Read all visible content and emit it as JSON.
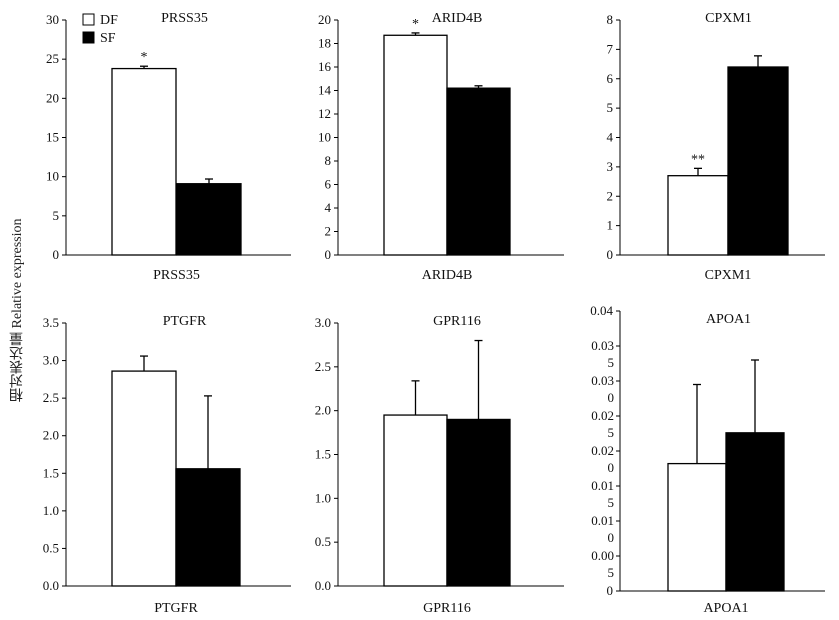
{
  "figure": {
    "y_axis_label": "相对表达量 Relative expression",
    "legend": [
      {
        "label": "DF",
        "color": "#ffffff"
      },
      {
        "label": "SF",
        "color": "#000000"
      }
    ]
  },
  "chart_data": [
    {
      "type": "bar",
      "title": "PRSS35",
      "xlabel": "PRSS35",
      "ylim": [
        0,
        30
      ],
      "ticks": [
        "0",
        "5",
        "10",
        "15",
        "20",
        "25",
        "30"
      ],
      "categories": [
        "DF",
        "SF"
      ],
      "series": [
        {
          "name": "DF",
          "value": 23.8,
          "error": 0.3,
          "color": "#ffffff",
          "annotation": "*"
        },
        {
          "name": "SF",
          "value": 9.1,
          "error": 0.6,
          "color": "#000000",
          "annotation": ""
        }
      ]
    },
    {
      "type": "bar",
      "title": "ARID4B",
      "xlabel": "ARID4B",
      "ylim": [
        0,
        20
      ],
      "ticks": [
        "0",
        "2",
        "4",
        "6",
        "8",
        "10",
        "12",
        "14",
        "16",
        "18",
        "20"
      ],
      "categories": [
        "DF",
        "SF"
      ],
      "series": [
        {
          "name": "DF",
          "value": 18.7,
          "error": 0.2,
          "color": "#ffffff",
          "annotation": "*"
        },
        {
          "name": "SF",
          "value": 14.2,
          "error": 0.2,
          "color": "#000000",
          "annotation": ""
        }
      ]
    },
    {
      "type": "bar",
      "title": "CPXM1",
      "xlabel": "CPXM1",
      "ylim": [
        0,
        8
      ],
      "ticks": [
        "0",
        "1",
        "2",
        "3",
        "4",
        "5",
        "6",
        "7",
        "8"
      ],
      "categories": [
        "DF",
        "SF"
      ],
      "series": [
        {
          "name": "DF",
          "value": 2.7,
          "error": 0.25,
          "color": "#ffffff",
          "annotation": "**"
        },
        {
          "name": "SF",
          "value": 6.4,
          "error": 0.38,
          "color": "#000000",
          "annotation": ""
        }
      ]
    },
    {
      "type": "bar",
      "title": "PTGFR",
      "xlabel": "PTGFR",
      "ylim": [
        0,
        3.5
      ],
      "ticks": [
        "0.0",
        "0.5",
        "1.0",
        "1.5",
        "2.0",
        "2.5",
        "3.0",
        "3.5"
      ],
      "categories": [
        "DF",
        "SF"
      ],
      "series": [
        {
          "name": "DF",
          "value": 2.86,
          "error": 0.2,
          "color": "#ffffff",
          "annotation": ""
        },
        {
          "name": "SF",
          "value": 1.56,
          "error": 0.97,
          "color": "#000000",
          "annotation": ""
        }
      ]
    },
    {
      "type": "bar",
      "title": "GPR116",
      "xlabel": "GPR116",
      "ylim": [
        0,
        3.0
      ],
      "ticks": [
        "0.0",
        "0.5",
        "1.0",
        "1.5",
        "2.0",
        "2.5",
        "3.0"
      ],
      "categories": [
        "DF",
        "SF"
      ],
      "series": [
        {
          "name": "DF",
          "value": 1.95,
          "error": 0.39,
          "color": "#ffffff",
          "annotation": ""
        },
        {
          "name": "SF",
          "value": 1.9,
          "error": 0.9,
          "color": "#000000",
          "annotation": ""
        }
      ]
    },
    {
      "type": "bar",
      "title": "APOA1",
      "xlabel": "APOA1",
      "ylim": [
        0,
        0.04
      ],
      "ticks": [
        "0",
        "0.00\n5",
        "0.01\n0",
        "0.01\n5",
        "0.02\n0",
        "0.02\n5",
        "0.03\n0",
        "0.03\n5",
        "0.04"
      ],
      "categories": [
        "DF",
        "SF"
      ],
      "series": [
        {
          "name": "DF",
          "value": 0.0182,
          "error": 0.0113,
          "color": "#ffffff",
          "annotation": ""
        },
        {
          "name": "SF",
          "value": 0.0226,
          "error": 0.0104,
          "color": "#000000",
          "annotation": ""
        }
      ]
    }
  ]
}
